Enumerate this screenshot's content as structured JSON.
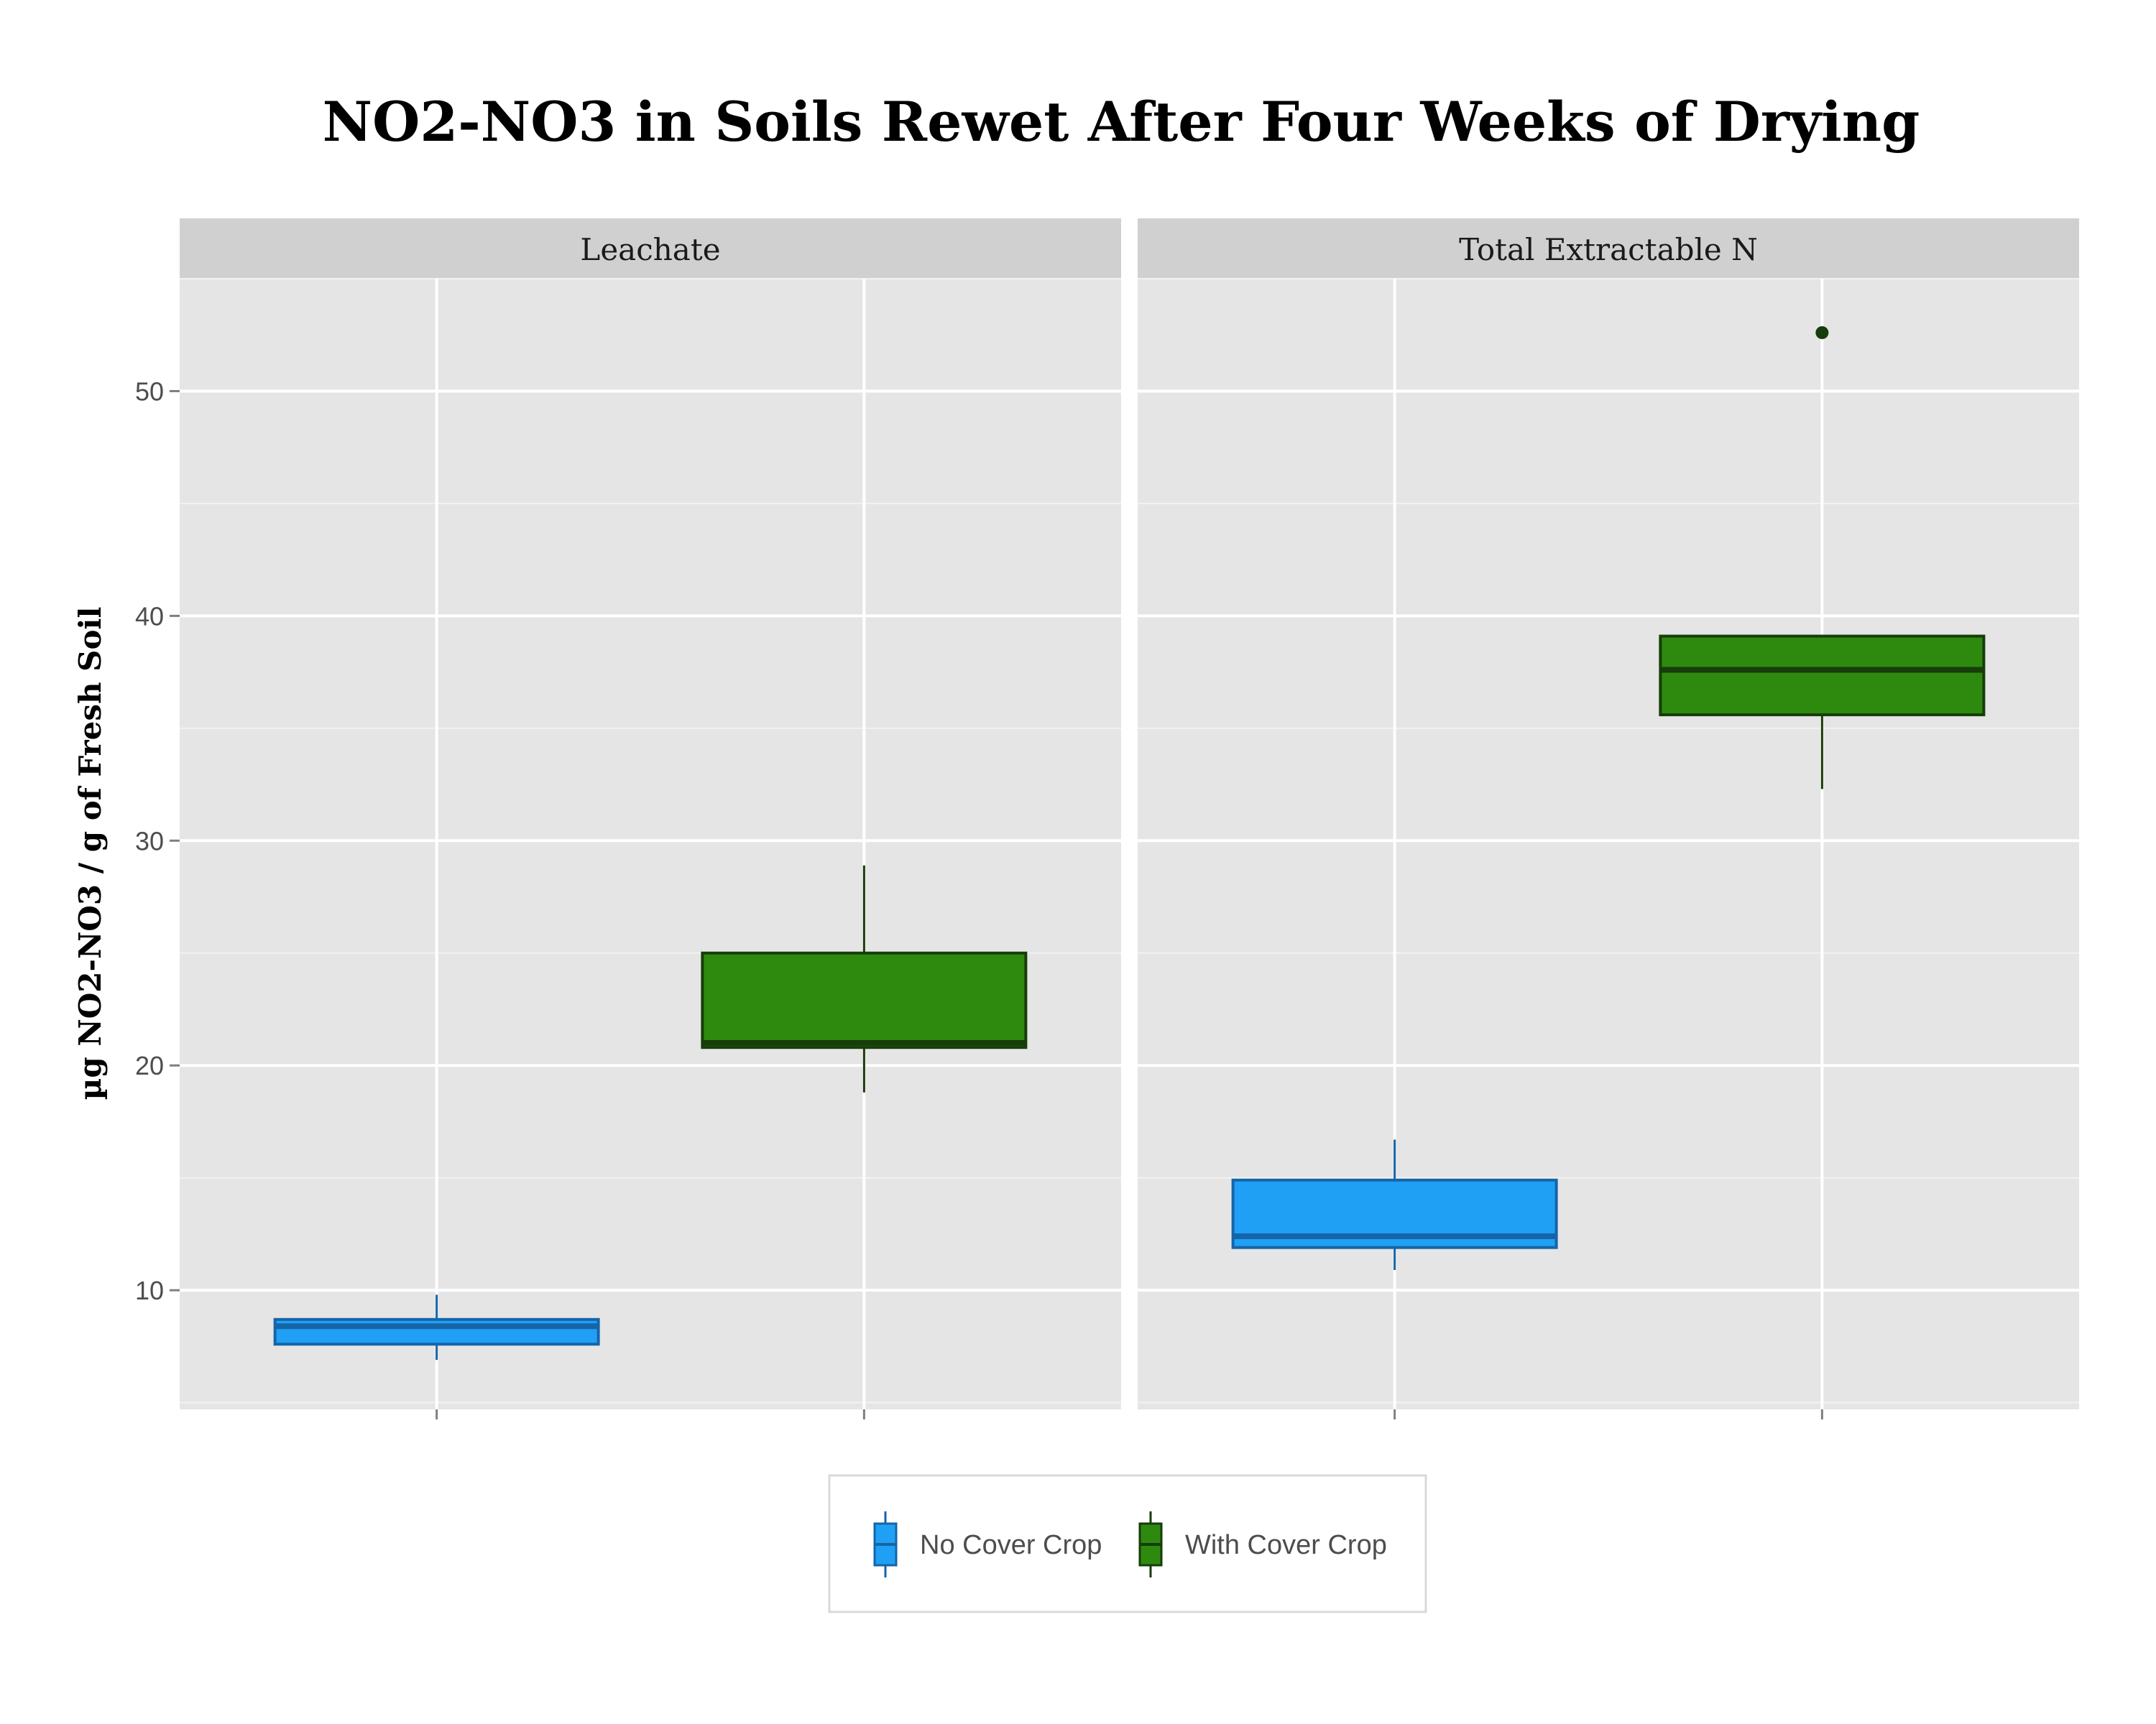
{
  "chart_data": {
    "type": "boxplot",
    "title": "NO2-NO3 in Soils Rewet After Four Weeks of Drying",
    "ylabel": "µg NO2-NO3 / g of Fresh Soil",
    "xlabel": "",
    "ylim": [
      4.7,
      55
    ],
    "y_ticks": [
      10,
      20,
      30,
      40,
      50
    ],
    "grid": true,
    "legend_position": "bottom",
    "series": [
      {
        "name": "No Cover Crop",
        "fill": "#1fa0f5",
        "stroke": "#1565a8"
      },
      {
        "name": "With Cover Crop",
        "fill": "#2d8a0f",
        "stroke": "#173d0a"
      }
    ],
    "panels": [
      {
        "label": "Leachate",
        "boxes": [
          {
            "series": 0,
            "whisker_low": 6.9,
            "q1": 7.6,
            "median": 8.4,
            "q3": 8.7,
            "whisker_high": 9.8,
            "outliers": []
          },
          {
            "series": 1,
            "whisker_low": 18.8,
            "q1": 20.8,
            "median": 21.0,
            "q3": 25.0,
            "whisker_high": 28.9,
            "outliers": []
          }
        ]
      },
      {
        "label": "Total Extractable N",
        "boxes": [
          {
            "series": 0,
            "whisker_low": 10.9,
            "q1": 11.9,
            "median": 12.4,
            "q3": 14.9,
            "whisker_high": 16.7,
            "outliers": []
          },
          {
            "series": 1,
            "whisker_low": 32.3,
            "q1": 35.6,
            "median": 37.6,
            "q3": 39.1,
            "whisker_high": 39.1,
            "outliers": [
              52.6
            ]
          }
        ]
      }
    ]
  }
}
